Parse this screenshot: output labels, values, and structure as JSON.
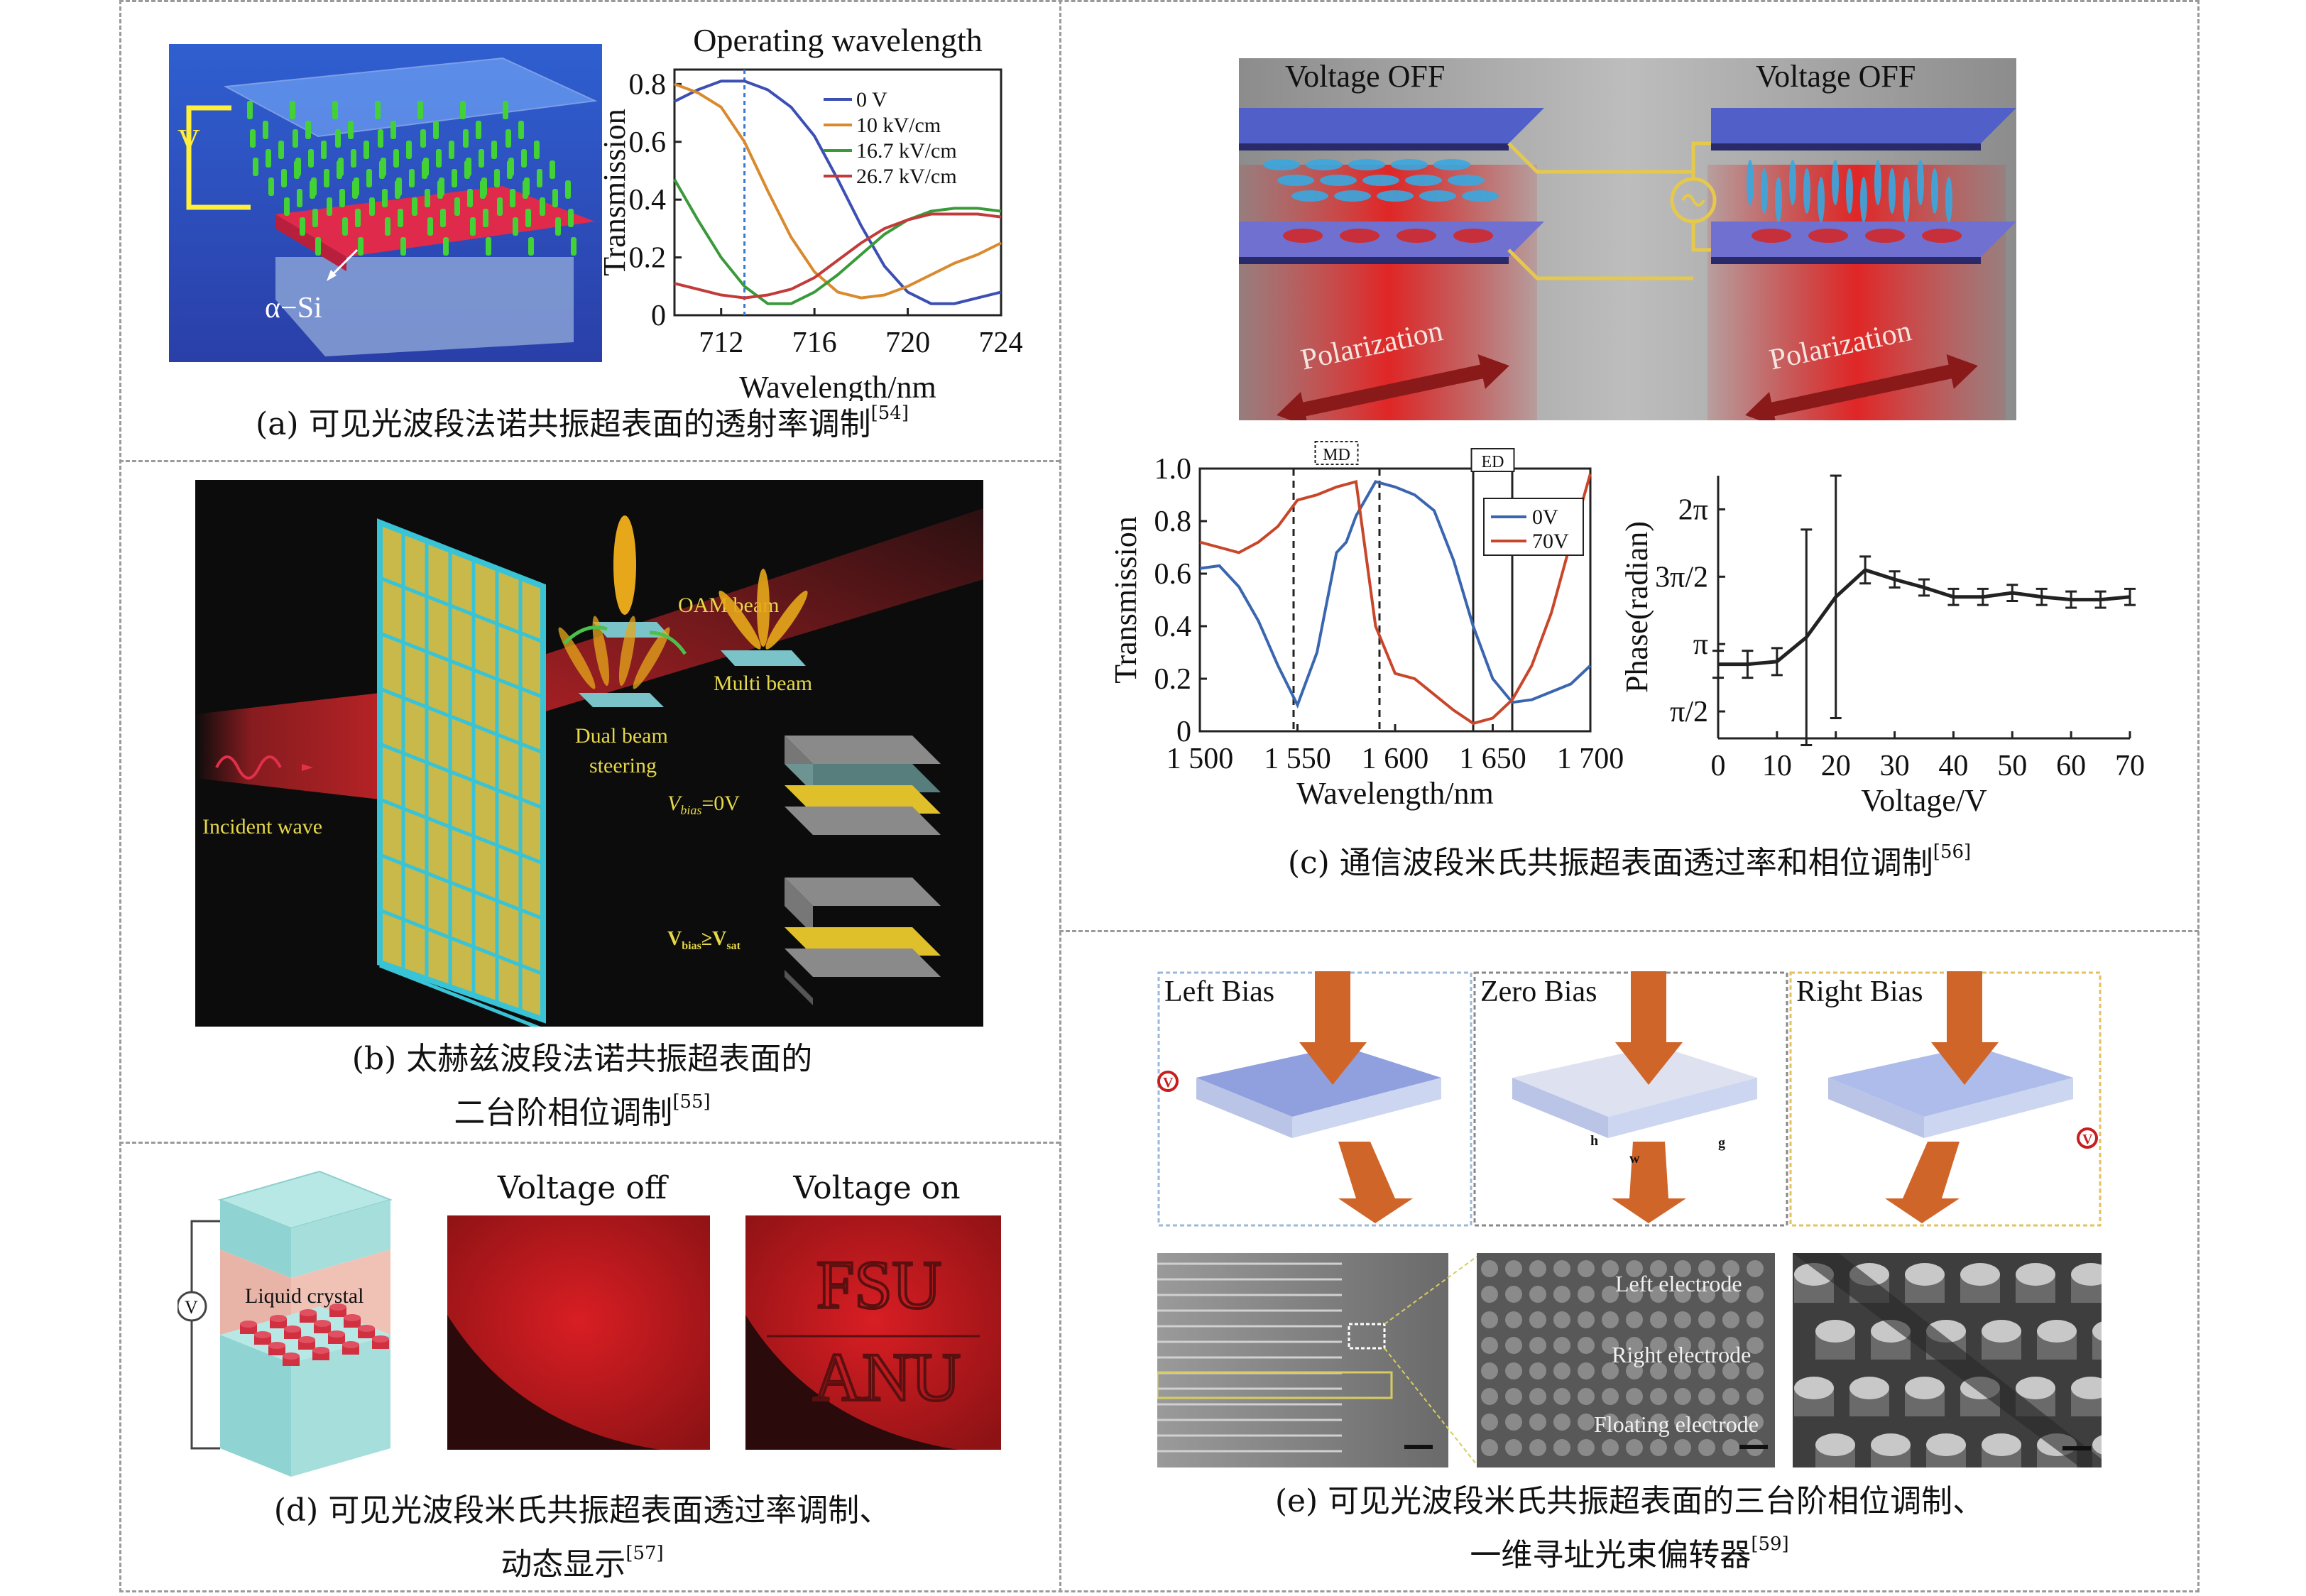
{
  "panel_a": {
    "chart_data": {
      "type": "line",
      "title": "Operating wavelength",
      "xlabel": "Wavelength/nm",
      "ylabel": "Transmission",
      "xlim": [
        710,
        724
      ],
      "ylim": [
        0,
        0.85
      ],
      "xticks": [
        "712",
        "716",
        "720",
        "724"
      ],
      "yticks": [
        "0",
        "0.2",
        "0.4",
        "0.6",
        "0.8"
      ],
      "marker_line_x": 713,
      "series": [
        {
          "name": "0 V",
          "color": "#3c4fb3",
          "x": [
            710,
            711,
            712,
            713,
            714,
            715,
            716,
            717,
            718,
            719,
            720,
            721,
            722,
            723,
            724
          ],
          "values": [
            0.74,
            0.78,
            0.81,
            0.81,
            0.78,
            0.72,
            0.62,
            0.47,
            0.31,
            0.17,
            0.08,
            0.04,
            0.04,
            0.06,
            0.08
          ]
        },
        {
          "name": "10 kV/cm",
          "color": "#d98a2e",
          "x": [
            710,
            711,
            712,
            713,
            714,
            715,
            716,
            717,
            718,
            719,
            720,
            721,
            722,
            723,
            724
          ],
          "values": [
            0.8,
            0.77,
            0.72,
            0.6,
            0.43,
            0.27,
            0.15,
            0.08,
            0.06,
            0.07,
            0.1,
            0.14,
            0.18,
            0.21,
            0.25
          ]
        },
        {
          "name": "16.7 kV/cm",
          "color": "#3a9a3a",
          "x": [
            710,
            711,
            712,
            713,
            714,
            715,
            716,
            717,
            718,
            719,
            720,
            721,
            722,
            723,
            724
          ],
          "values": [
            0.47,
            0.33,
            0.2,
            0.1,
            0.04,
            0.04,
            0.08,
            0.14,
            0.21,
            0.28,
            0.33,
            0.36,
            0.37,
            0.37,
            0.36
          ]
        },
        {
          "name": "26.7 kV/cm",
          "color": "#c23b3b",
          "x": [
            710,
            711,
            712,
            713,
            714,
            715,
            716,
            717,
            718,
            719,
            720,
            721,
            722,
            723,
            724
          ],
          "values": [
            0.11,
            0.09,
            0.07,
            0.06,
            0.07,
            0.09,
            0.13,
            0.19,
            0.25,
            0.3,
            0.33,
            0.35,
            0.35,
            0.35,
            0.34
          ]
        }
      ]
    },
    "labels": {
      "voltage": "V",
      "material": "α−Si"
    },
    "caption": "(a) 可见光波段法诺共振超表面的透射率调制",
    "ref": "[54]"
  },
  "panel_b": {
    "labels": {
      "oam": "OAM beam",
      "multi": "Multi beam",
      "dual_1": "Dual beam",
      "dual_2": "steering",
      "incident": "Incident wave",
      "vbias0_v": "V",
      "vbias0_sub": "bias",
      "vbias0_rest": "=0V",
      "vsat_v": "V",
      "vsat_sub": "bias",
      "vsat_mid": "≥V",
      "vsat_sub2": "sat"
    },
    "caption_line1": "(b) 太赫兹波段法诺共振超表面的",
    "caption_line2": "二台阶相位调制",
    "ref": "[55]"
  },
  "panel_c": {
    "labels": {
      "left_title": "Voltage OFF",
      "right_title": "Voltage OFF",
      "polarization_1": "Polarization",
      "polarization_2": "Polarization",
      "md": "MD",
      "ed": "ED"
    },
    "chart_data": [
      {
        "type": "line",
        "xlabel": "Wavelength/nm",
        "ylabel": "Transmission",
        "xlim": [
          1500,
          1700
        ],
        "ylim": [
          0,
          1.0
        ],
        "xticks": [
          "1 500",
          "1 550",
          "1 600",
          "1 650",
          "1 700"
        ],
        "yticks": [
          "0",
          "0.2",
          "0.4",
          "0.6",
          "0.8",
          "1.0"
        ],
        "series": [
          {
            "name": "0V",
            "color": "#3a66b0",
            "x": [
              1500,
              1510,
              1520,
              1530,
              1540,
              1550,
              1560,
              1570,
              1575,
              1580,
              1590,
              1600,
              1610,
              1620,
              1630,
              1640,
              1650,
              1660,
              1670,
              1680,
              1690,
              1700
            ],
            "values": [
              0.62,
              0.63,
              0.55,
              0.42,
              0.25,
              0.1,
              0.3,
              0.68,
              0.72,
              0.82,
              0.95,
              0.93,
              0.9,
              0.84,
              0.65,
              0.4,
              0.2,
              0.11,
              0.12,
              0.15,
              0.18,
              0.25
            ]
          },
          {
            "name": "70V",
            "color": "#c8462a",
            "x": [
              1500,
              1510,
              1520,
              1530,
              1540,
              1550,
              1560,
              1570,
              1580,
              1590,
              1600,
              1610,
              1620,
              1630,
              1640,
              1650,
              1660,
              1670,
              1680,
              1690,
              1700
            ],
            "values": [
              0.72,
              0.7,
              0.68,
              0.72,
              0.78,
              0.88,
              0.9,
              0.93,
              0.95,
              0.4,
              0.22,
              0.2,
              0.14,
              0.08,
              0.03,
              0.05,
              0.12,
              0.25,
              0.45,
              0.72,
              0.98
            ]
          }
        ]
      },
      {
        "type": "line",
        "xlabel": "Voltage/V",
        "ylabel": "Phase(radian)",
        "xlim": [
          0,
          70
        ],
        "ylim_rad_over_pi": [
          0.3,
          2.25
        ],
        "xticks": [
          "0",
          "10",
          "20",
          "30",
          "40",
          "50",
          "60",
          "70"
        ],
        "yticks": [
          "π/2",
          "π",
          "3π/2",
          "2π"
        ],
        "series": [
          {
            "name": "",
            "color": "#222222",
            "x": [
              0,
              5,
              10,
              15,
              20,
              25,
              30,
              35,
              40,
              45,
              50,
              55,
              60,
              65,
              70
            ],
            "values": [
              0.85,
              0.85,
              0.87,
              1.05,
              1.35,
              1.55,
              1.48,
              1.42,
              1.35,
              1.35,
              1.38,
              1.35,
              1.33,
              1.33,
              1.35
            ],
            "err": [
              0.1,
              0.1,
              0.1,
              0.8,
              0.9,
              0.1,
              0.06,
              0.06,
              0.06,
              0.06,
              0.06,
              0.06,
              0.06,
              0.06,
              0.06
            ]
          }
        ]
      }
    ],
    "caption": "(c) 通信波段米氏共振超表面透过率和相位调制",
    "ref": "[56]"
  },
  "panel_d": {
    "labels": {
      "lc": "Liquid crystal",
      "v": "V",
      "off_title": "Voltage off",
      "on_title": "Voltage on",
      "fsu": "FSU",
      "anu": "ANU"
    },
    "caption_line1": "(d) 可见光波段米氏共振超表面透过率调制、",
    "caption_line2": "动态显示",
    "ref": "[57]"
  },
  "panel_e": {
    "labels": {
      "left": "Left Bias",
      "zero": "Zero Bias",
      "right": "Right Bias",
      "le": "Left electrode",
      "re": "Right electrode",
      "fe": "Floating electrode",
      "vl": "V",
      "vr": "V",
      "h": "h",
      "w": "w",
      "g": "g"
    },
    "caption_line1": "(e) 可见光波段米氏共振超表面的三台阶相位调制、",
    "caption_line2": "一维寻址光束偏转器",
    "ref": "[59]"
  },
  "colors": {
    "dash": "#9a9a9a",
    "red_beam": "#d8262c",
    "cyan": "#38c3d6",
    "yellow": "#e6d84a"
  }
}
